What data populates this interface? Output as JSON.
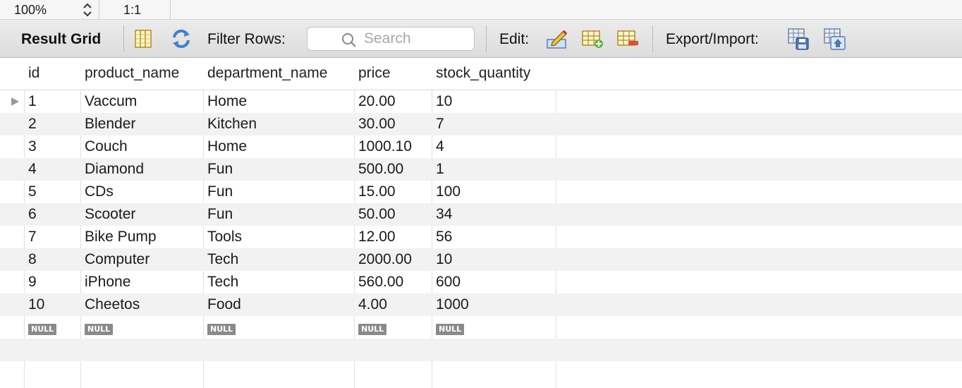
{
  "statusbar": {
    "zoom": "100%",
    "ratio": "1:1"
  },
  "toolbar": {
    "result_grid_label": "Result Grid",
    "filter_label": "Filter Rows:",
    "search_placeholder": "Search",
    "edit_label": "Edit:",
    "export_label": "Export/Import:"
  },
  "icons": [
    "form-view-icon",
    "refresh-icon",
    "search-icon",
    "edit-cell-icon",
    "insert-row-icon",
    "delete-row-icon",
    "export-icon",
    "import-icon",
    "current-row-marker-icon",
    "zoom-stepper-icon"
  ],
  "table": {
    "columns": [
      "id",
      "product_name",
      "department_name",
      "price",
      "stock_quantity"
    ],
    "rows": [
      [
        "1",
        "Vaccum",
        "Home",
        "20.00",
        "10"
      ],
      [
        "2",
        "Blender",
        "Kitchen",
        "30.00",
        "7"
      ],
      [
        "3",
        "Couch",
        "Home",
        "1000.10",
        "4"
      ],
      [
        "4",
        "Diamond",
        "Fun",
        "500.00",
        "1"
      ],
      [
        "5",
        "CDs",
        "Fun",
        "15.00",
        "100"
      ],
      [
        "6",
        "Scooter",
        "Fun",
        "50.00",
        "34"
      ],
      [
        "7",
        "Bike Pump",
        "Tools",
        "12.00",
        "56"
      ],
      [
        "8",
        "Computer",
        "Tech",
        "2000.00",
        "10"
      ],
      [
        "9",
        "iPhone",
        "Tech",
        "560.00",
        "600"
      ],
      [
        "10",
        "Cheetos",
        "Food",
        "4.00",
        "1000"
      ]
    ],
    "null_label": "NULL"
  }
}
